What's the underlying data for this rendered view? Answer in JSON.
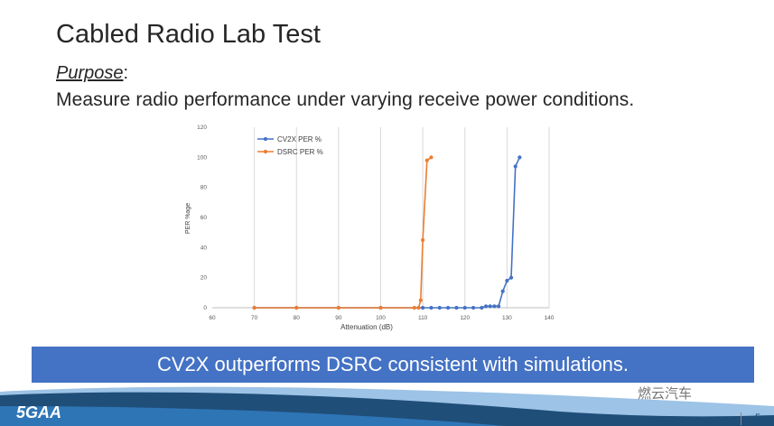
{
  "slide": {
    "title": "Cabled Radio Lab Test",
    "purpose_label": "Purpose",
    "purpose_colon": ":",
    "purpose_text": "Measure radio performance under varying receive power conditions.",
    "banner": "CV2X outperforms DSRC consistent with simulations.",
    "page_number": "5"
  },
  "footer": {
    "logo": "5GAA",
    "watermark": "燃云汽车"
  },
  "chart_data": {
    "type": "line",
    "title": "",
    "xlabel": "Attenuation (dB)",
    "ylabel": "PER %age",
    "xlim": [
      60,
      140
    ],
    "ylim": [
      0,
      120
    ],
    "xticks": [
      60,
      70,
      80,
      90,
      100,
      110,
      120,
      130,
      140
    ],
    "yticks": [
      0,
      20,
      40,
      60,
      80,
      100,
      120
    ],
    "grid": "vertical",
    "legend_position": "top-left",
    "series": [
      {
        "name": "CV2X PER %",
        "color": "#4472c4",
        "points": [
          [
            70,
            0
          ],
          [
            80,
            0
          ],
          [
            90,
            0
          ],
          [
            100,
            0
          ],
          [
            110,
            0
          ],
          [
            112,
            0
          ],
          [
            114,
            0
          ],
          [
            116,
            0
          ],
          [
            118,
            0
          ],
          [
            120,
            0
          ],
          [
            122,
            0
          ],
          [
            124,
            0
          ],
          [
            125,
            1
          ],
          [
            126,
            1
          ],
          [
            127,
            1
          ],
          [
            128,
            1
          ],
          [
            129,
            11
          ],
          [
            130,
            18
          ],
          [
            131,
            20
          ],
          [
            132,
            94
          ],
          [
            133,
            100
          ]
        ]
      },
      {
        "name": "DSRC PER %",
        "color": "#ed7d31",
        "points": [
          [
            70,
            0
          ],
          [
            80,
            0
          ],
          [
            90,
            0
          ],
          [
            100,
            0
          ],
          [
            108,
            0
          ],
          [
            109,
            0
          ],
          [
            109.5,
            5
          ],
          [
            110,
            45
          ],
          [
            111,
            98
          ],
          [
            112,
            100
          ]
        ]
      }
    ]
  }
}
